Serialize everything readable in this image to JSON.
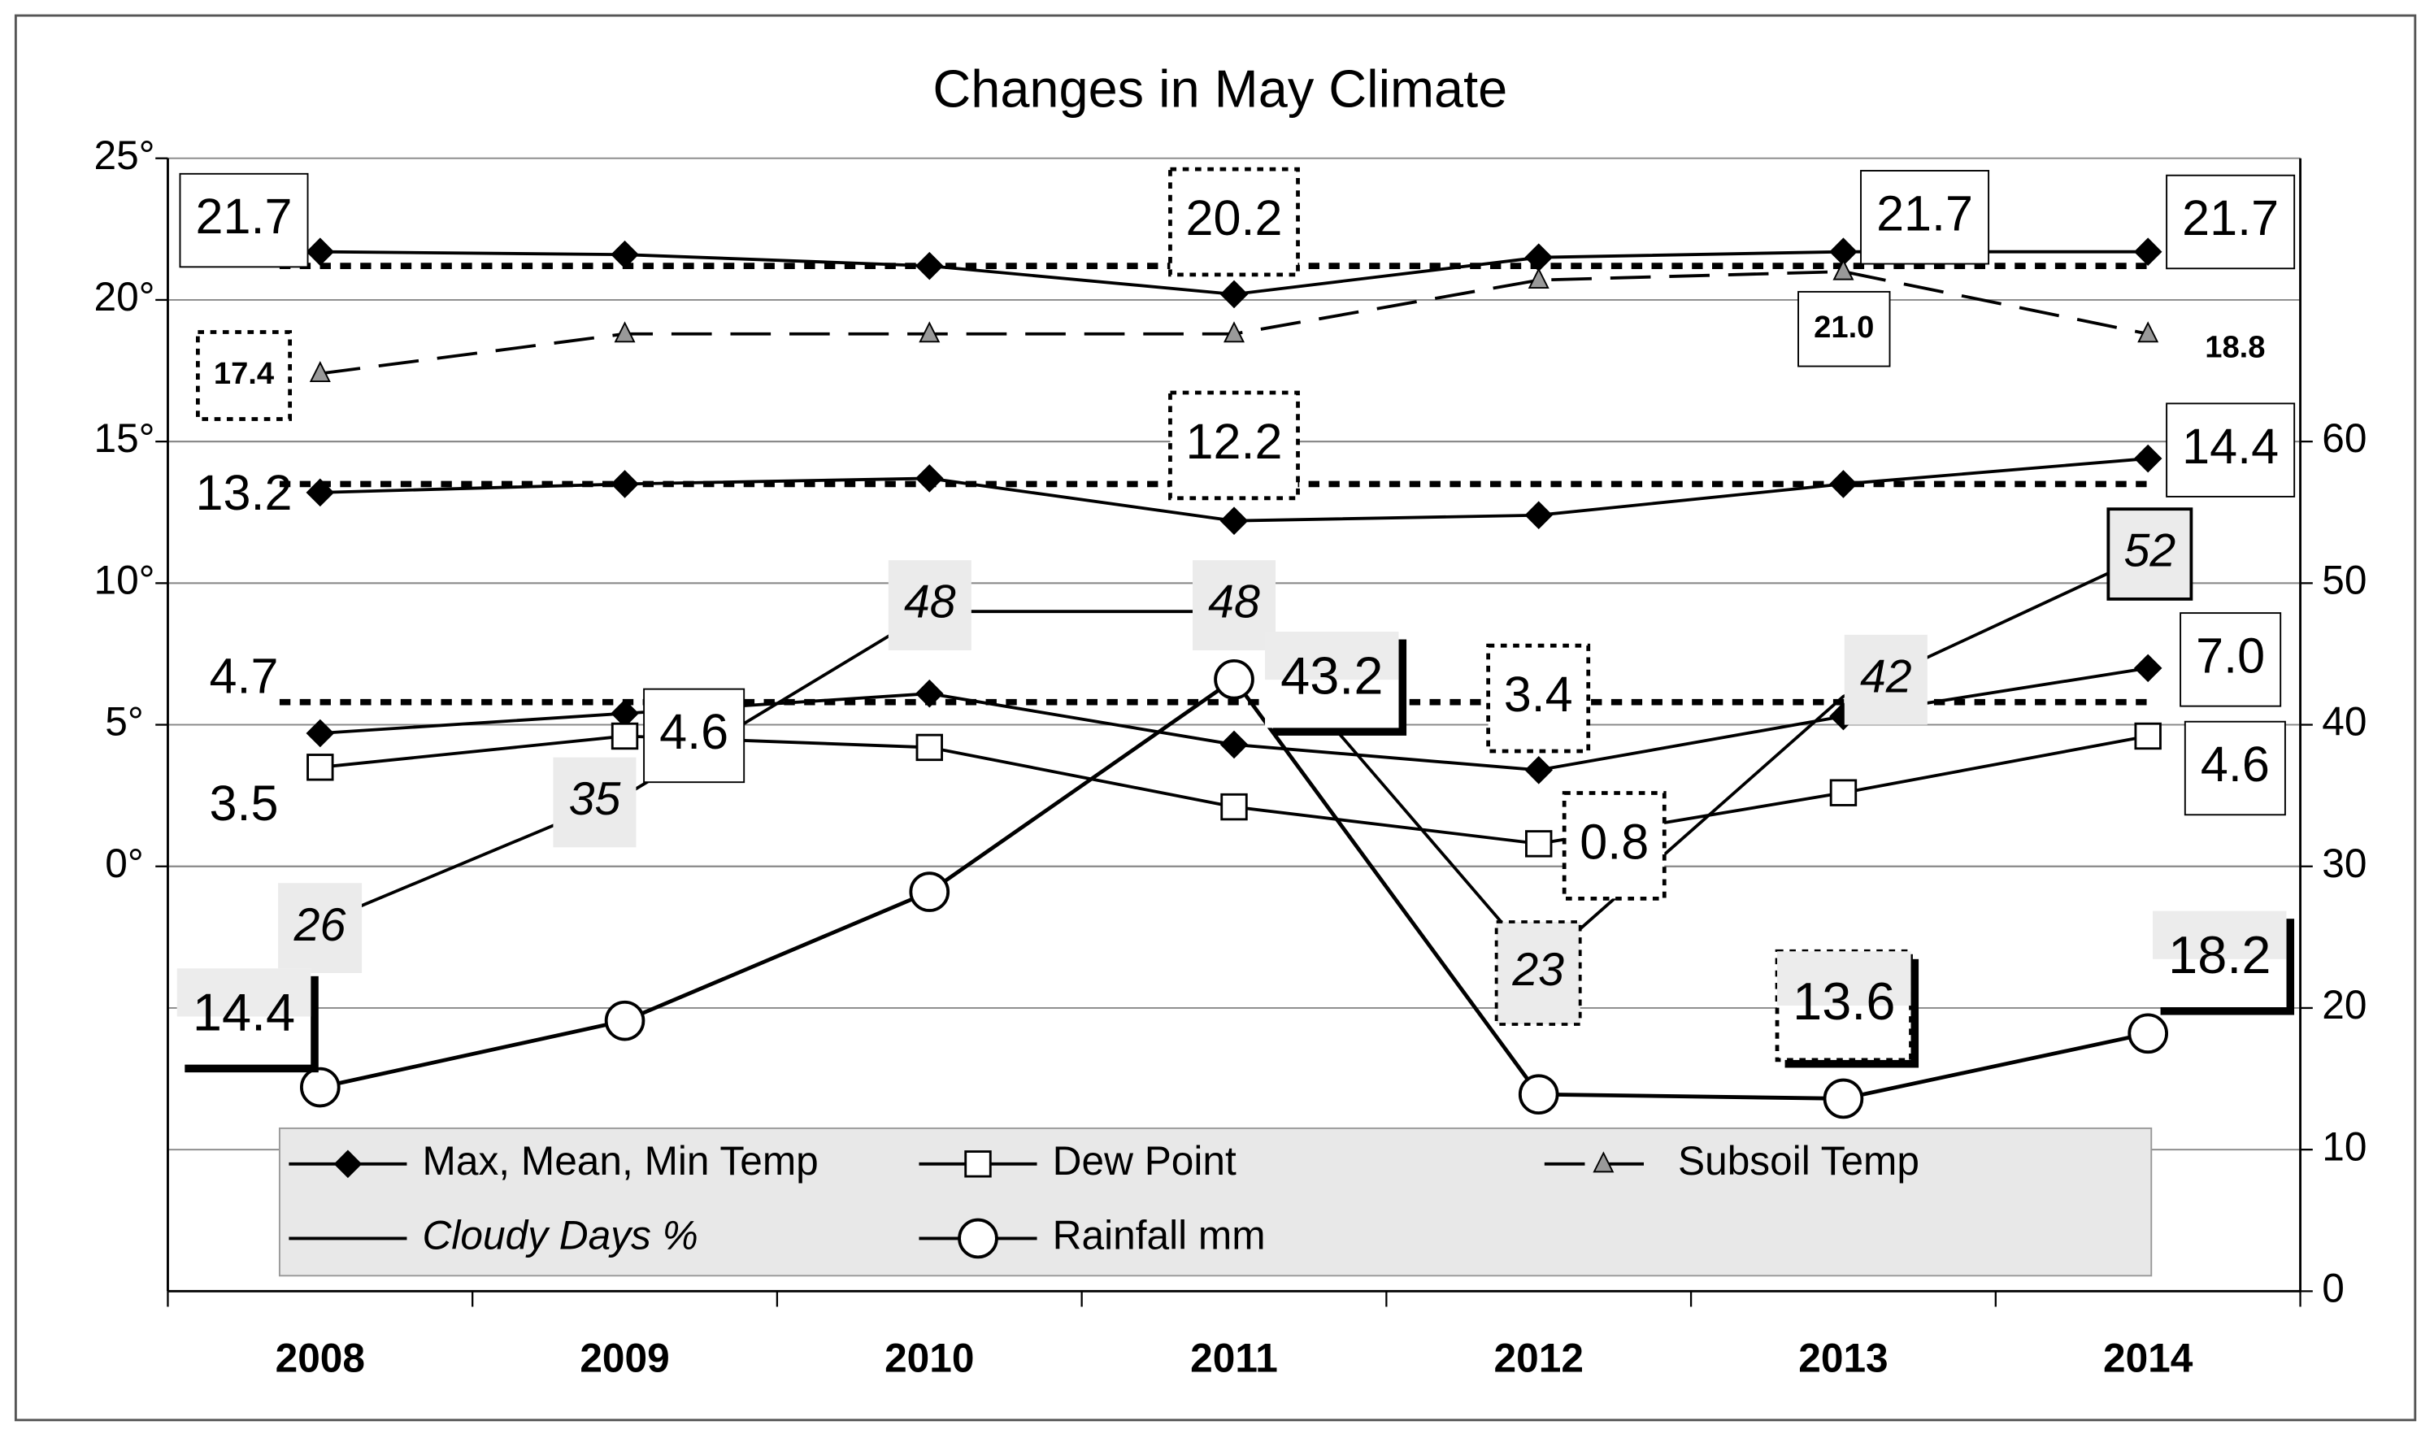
{
  "chart_data": {
    "type": "line",
    "title": "Changes in May Climate",
    "categories": [
      "2008",
      "2009",
      "2010",
      "2011",
      "2012",
      "2013",
      "2014"
    ],
    "ylim": [
      -15,
      25
    ],
    "yticks": [
      {
        "value": 0,
        "label": "0°"
      },
      {
        "value": 5,
        "label": "5°"
      },
      {
        "value": 10,
        "label": "10°"
      },
      {
        "value": 15,
        "label": "15°"
      },
      {
        "value": 20,
        "label": "20°"
      },
      {
        "value": 25,
        "label": "25°"
      }
    ],
    "y2lim": [
      0,
      80
    ],
    "y2ticks": [
      0,
      10,
      20,
      30,
      40,
      50,
      60
    ],
    "grid": true,
    "averages": [
      21.2,
      13.5,
      5.8
    ],
    "series": [
      {
        "name": "Max, Mean, Min Temp",
        "color": "#000000",
        "marker": "diamond",
        "dash": "solid",
        "values": [
          21.7,
          21.6,
          21.2,
          20.2,
          21.5,
          21.7,
          21.7
        ],
        "value_labels": [
          "21.7",
          null,
          null,
          "20.2",
          null,
          "21.7",
          "21.7"
        ]
      },
      {
        "color": "#000000",
        "marker": "diamond",
        "dash": "solid",
        "values": [
          13.2,
          13.5,
          13.7,
          12.2,
          12.4,
          13.5,
          14.4
        ],
        "value_labels": [
          "13.2",
          null,
          null,
          "12.2",
          null,
          null,
          "14.4"
        ]
      },
      {
        "color": "#000000",
        "marker": "diamond",
        "dash": "solid",
        "values": [
          4.7,
          5.4,
          6.1,
          4.3,
          3.4,
          5.3,
          7.0
        ],
        "value_labels": [
          "4.7",
          null,
          null,
          null,
          "3.4",
          null,
          "7.0"
        ]
      },
      {
        "name": "Dew Point",
        "color": "#000000",
        "marker": "square",
        "dash": "solid",
        "values": [
          3.5,
          4.6,
          4.2,
          2.1,
          0.8,
          2.6,
          4.6
        ],
        "value_labels": [
          "3.5",
          "4.6",
          null,
          null,
          "0.8",
          null,
          "4.6"
        ]
      },
      {
        "name": "Subsoil Temp",
        "color": "#000000",
        "marker": "triangle",
        "dash": "dashed",
        "values": [
          17.4,
          18.8,
          18.8,
          18.8,
          20.7,
          21.0,
          18.8
        ],
        "value_labels": [
          "17.4",
          null,
          null,
          null,
          null,
          "21.0",
          "18.8"
        ]
      },
      {
        "name": "Cloudy Days %",
        "color": "#000000",
        "marker": "none",
        "dash": "solid",
        "axis": "y2",
        "italic": true,
        "values": [
          26,
          35,
          48,
          48,
          23,
          42,
          52
        ],
        "value_labels": [
          "26",
          "35",
          "48",
          "48",
          "23",
          "42",
          "52"
        ]
      },
      {
        "name": "Rainfall mm",
        "color": "#000000",
        "marker": "circle",
        "dash": "solid",
        "axis": "y2",
        "values": [
          14.4,
          19.1,
          28.2,
          43.2,
          13.9,
          13.6,
          18.2
        ],
        "value_labels": [
          "14.4",
          null,
          null,
          "43.2",
          null,
          "13.6",
          "18.2"
        ]
      }
    ]
  }
}
